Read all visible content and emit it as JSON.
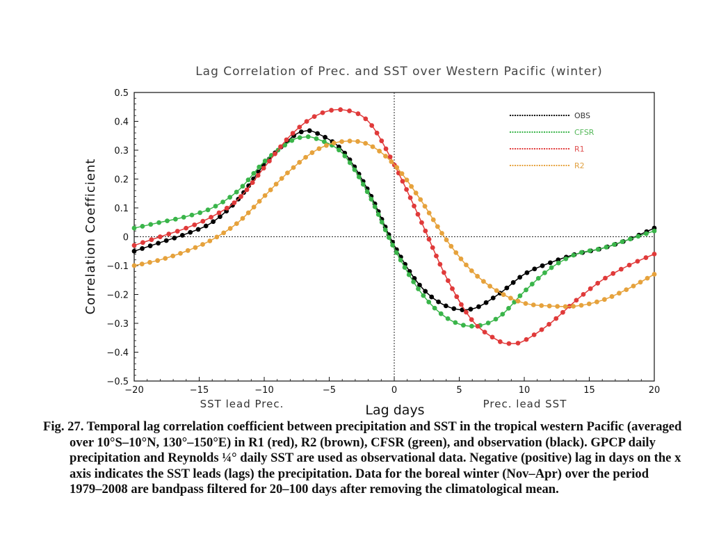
{
  "chart_data": {
    "type": "line",
    "title": "Lag Correlation of Prec. and SST over Western Pacific (winter)",
    "xlabel": "Lag days",
    "ylabel": "Correlation Coefficient",
    "xlim": [
      -20,
      20
    ],
    "ylim": [
      -0.5,
      0.5
    ],
    "x_ticks": [
      -20,
      -15,
      -10,
      -5,
      0,
      5,
      10,
      15,
      20
    ],
    "x_tick_labels": [
      "−20",
      "−15",
      "−10",
      "−5",
      "0",
      "5",
      "10",
      "15",
      "20"
    ],
    "y_ticks": [
      -0.5,
      -0.4,
      -0.3,
      -0.2,
      -0.1,
      0,
      0.1,
      0.2,
      0.3,
      0.4,
      0.5
    ],
    "y_tick_labels": [
      "−0.5",
      "−0.4",
      "−0.3",
      "−0.2",
      "−0.1",
      "0",
      "0.1",
      "0.2",
      "0.3",
      "0.4",
      "0.5"
    ],
    "left_annotation": "SST lead Prec.",
    "right_annotation": "Prec. lead SST",
    "legend_position": "top-right",
    "reference_lines": {
      "y": 0,
      "x": 0
    },
    "series": [
      {
        "name": "OBS",
        "color": "#000000",
        "label_color": "#333333",
        "x": [
          -20,
          -18,
          -16,
          -14,
          -12,
          -10,
          -8,
          -7,
          -6,
          -4,
          -2,
          0,
          2,
          4,
          6,
          8,
          10,
          12,
          14,
          16,
          18,
          20
        ],
        "y": [
          -0.05,
          -0.02,
          0.01,
          0.05,
          0.13,
          0.25,
          0.34,
          0.365,
          0.36,
          0.3,
          0.16,
          -0.03,
          -0.17,
          -0.24,
          -0.25,
          -0.2,
          -0.13,
          -0.09,
          -0.06,
          -0.04,
          -0.01,
          0.03
        ]
      },
      {
        "name": "CFSR",
        "color": "#3ab54a",
        "label_color": "#55b85a",
        "x": [
          -20,
          -18,
          -16,
          -14,
          -12,
          -10,
          -8,
          -7,
          -6,
          -4,
          -2,
          0,
          2,
          4,
          6,
          8,
          10,
          12,
          14,
          16,
          18,
          20
        ],
        "y": [
          0.03,
          0.05,
          0.07,
          0.1,
          0.16,
          0.26,
          0.33,
          0.345,
          0.34,
          0.29,
          0.15,
          -0.04,
          -0.19,
          -0.28,
          -0.31,
          -0.28,
          -0.19,
          -0.11,
          -0.06,
          -0.04,
          -0.01,
          0.02
        ]
      },
      {
        "name": "R1",
        "color": "#e03a3a",
        "label_color": "#e05050",
        "x": [
          -20,
          -18,
          -16,
          -14,
          -12,
          -10,
          -8,
          -6,
          -4,
          -2,
          0,
          2,
          4,
          6,
          8,
          9,
          10,
          12,
          14,
          16,
          18,
          20
        ],
        "y": [
          -0.03,
          0.0,
          0.03,
          0.07,
          0.13,
          0.24,
          0.35,
          0.42,
          0.44,
          0.4,
          0.25,
          0.06,
          -0.14,
          -0.29,
          -0.36,
          -0.37,
          -0.36,
          -0.3,
          -0.22,
          -0.15,
          -0.1,
          -0.06
        ]
      },
      {
        "name": "R2",
        "color": "#e6a23c",
        "label_color": "#e0a040",
        "x": [
          -20,
          -18,
          -16,
          -14,
          -12,
          -10,
          -8,
          -6,
          -4,
          -2,
          0,
          2,
          4,
          6,
          8,
          10,
          12,
          14,
          16,
          18,
          20
        ],
        "y": [
          -0.1,
          -0.08,
          -0.05,
          -0.01,
          0.05,
          0.14,
          0.23,
          0.3,
          0.33,
          0.32,
          0.25,
          0.13,
          -0.01,
          -0.12,
          -0.19,
          -0.23,
          -0.24,
          -0.24,
          -0.22,
          -0.18,
          -0.13
        ]
      }
    ]
  },
  "caption": {
    "text": "Fig. 27. Temporal lag correlation coefficient between precipitation and SST in the tropical western Pacific (averaged over 10°S–10°N, 130°–150°E) in R1 (red), R2 (brown), CFSR (green), and observation (black).  GPCP daily precipitation and Reynolds ¼° daily SST are used as observational data. Negative (positive) lag in days on the x axis indicates the SST leads (lags) the precipitation. Data for the boreal winter (Nov–Apr) over the period 1979–2008 are bandpass filtered for 20–100 days after removing the climatological mean."
  }
}
